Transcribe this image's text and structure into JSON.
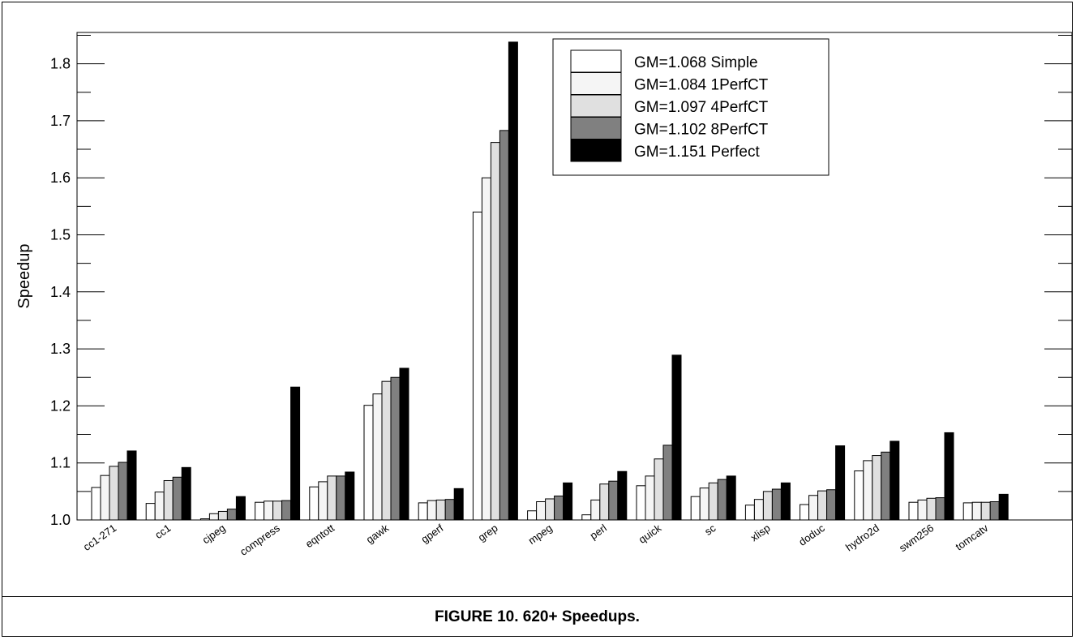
{
  "caption": "FIGURE 10.  620+ Speedups.",
  "chart_data": {
    "type": "bar",
    "title": "",
    "xlabel": "",
    "ylabel": "Speedup",
    "ylim": [
      1.0,
      1.85
    ],
    "yticks": [
      "1.0",
      "1.1",
      "1.2",
      "1.3",
      "1.4",
      "1.5",
      "1.6",
      "1.7",
      "1.8"
    ],
    "grid": false,
    "legend_position": "top-center",
    "categories": [
      "cc1-271",
      "cc1",
      "cjpeg",
      "compress",
      "eqntott",
      "gawk",
      "gperf",
      "grep",
      "mpeg",
      "perl",
      "quick",
      "sc",
      "xlisp",
      "doduc",
      "hydro2d",
      "swm256",
      "tomcatv"
    ],
    "series": [
      {
        "name": "GM=1.068 Simple",
        "color": "#ffffff",
        "values": [
          1.057,
          1.029,
          1.002,
          1.031,
          1.058,
          1.201,
          1.03,
          1.54,
          1.016,
          1.009,
          1.06,
          1.041,
          1.026,
          1.027,
          1.086,
          1.031,
          1.03
        ]
      },
      {
        "name": "GM=1.084 1PerfCT",
        "color": "#f5f5f5",
        "values": [
          1.078,
          1.049,
          1.011,
          1.033,
          1.067,
          1.221,
          1.034,
          1.6,
          1.032,
          1.035,
          1.077,
          1.056,
          1.036,
          1.043,
          1.104,
          1.035,
          1.031
        ]
      },
      {
        "name": "GM=1.097 4PerfCT",
        "color": "#e0e0e0",
        "values": [
          1.094,
          1.069,
          1.015,
          1.033,
          1.077,
          1.243,
          1.035,
          1.662,
          1.037,
          1.063,
          1.107,
          1.065,
          1.05,
          1.051,
          1.113,
          1.038,
          1.031
        ]
      },
      {
        "name": "GM=1.102 8PerfCT",
        "color": "#808080",
        "values": [
          1.101,
          1.075,
          1.019,
          1.034,
          1.077,
          1.25,
          1.036,
          1.683,
          1.042,
          1.068,
          1.131,
          1.071,
          1.054,
          1.053,
          1.119,
          1.039,
          1.032
        ]
      },
      {
        "name": "GM=1.151 Perfect",
        "color": "#000000",
        "values": [
          1.121,
          1.092,
          1.041,
          1.233,
          1.084,
          1.266,
          1.055,
          1.838,
          1.065,
          1.085,
          1.289,
          1.077,
          1.065,
          1.13,
          1.138,
          1.153,
          1.045
        ]
      }
    ]
  }
}
